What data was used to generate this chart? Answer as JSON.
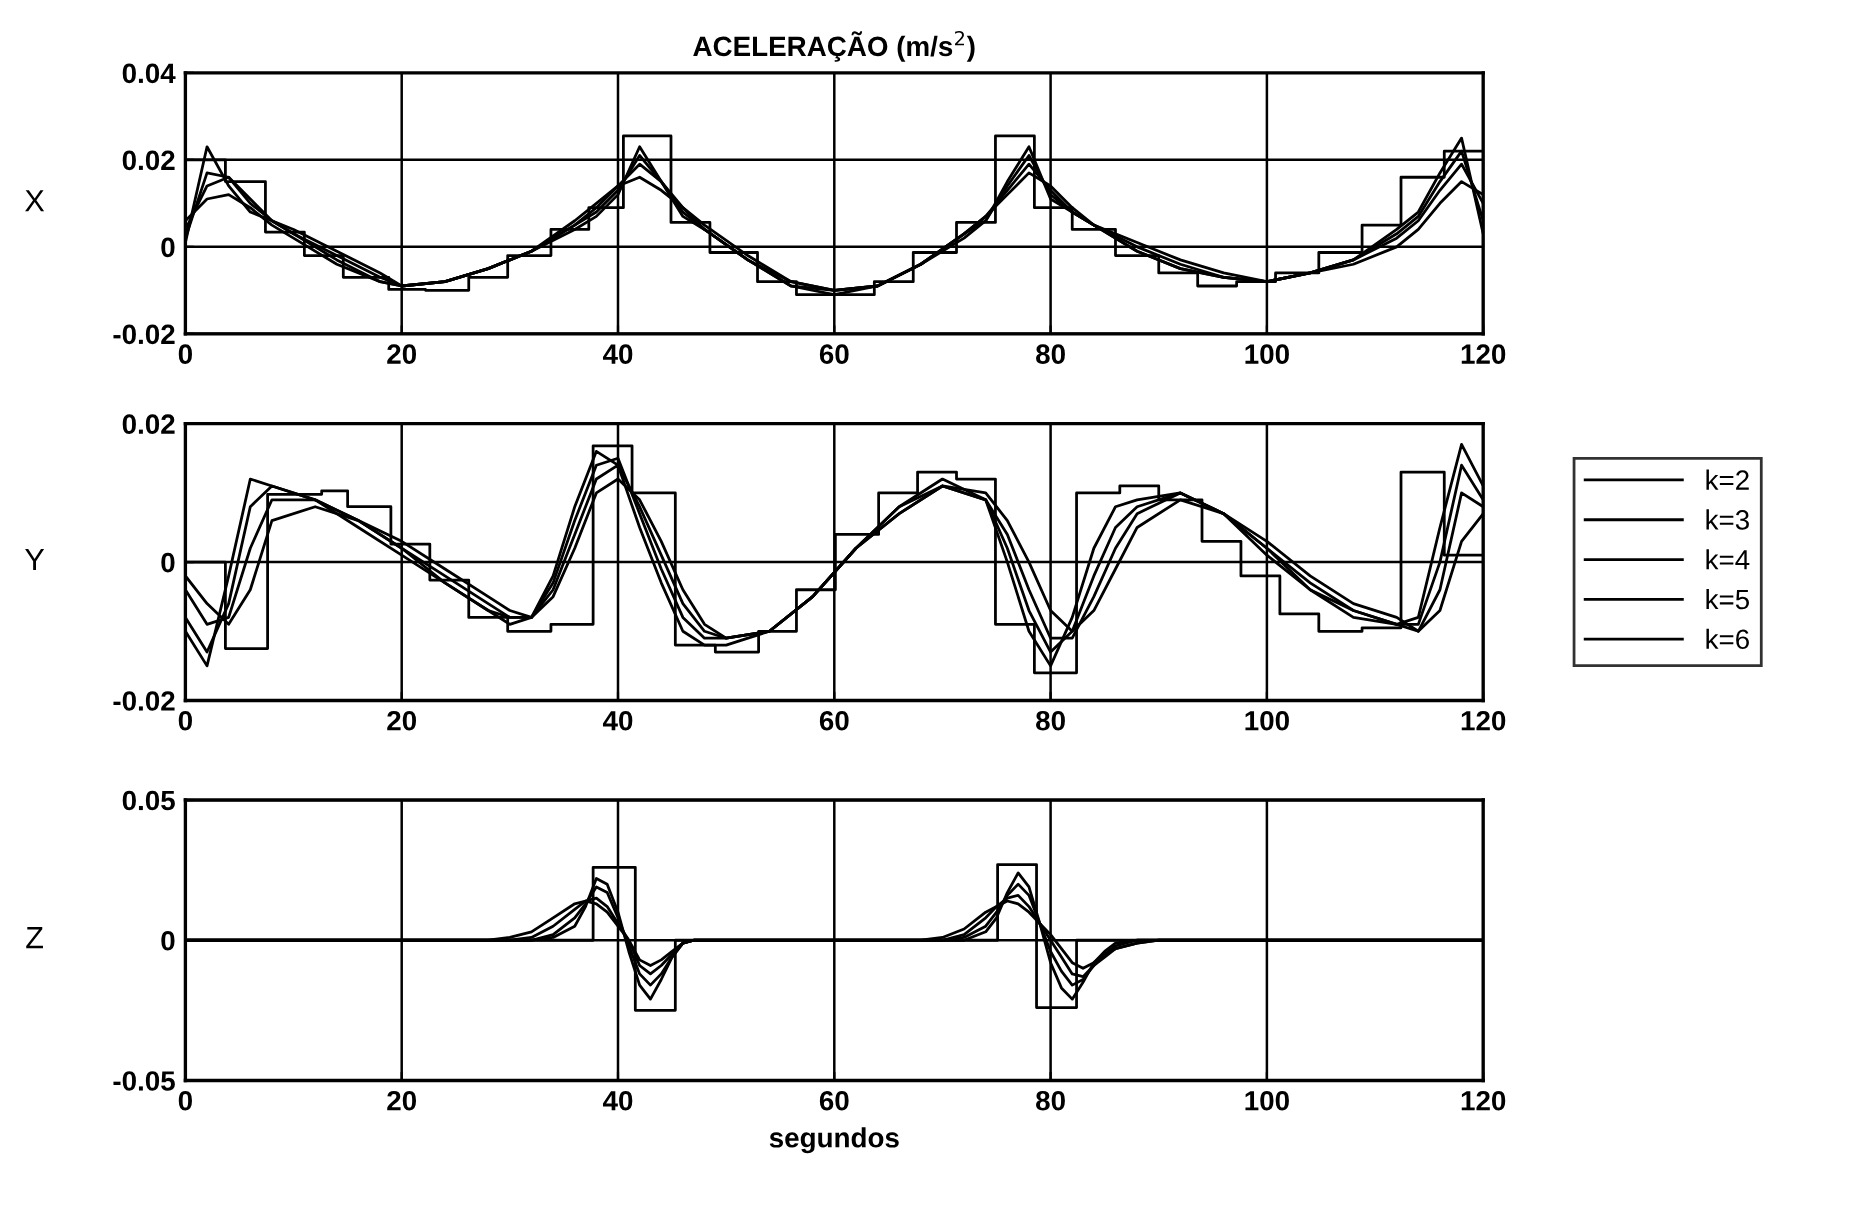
{
  "chart_data": [
    {
      "type": "line",
      "title": "ACELERAÇÃO (m/s$^{2}$)",
      "ylabel": "X",
      "xlim": [
        0,
        120
      ],
      "xticks": [
        0,
        20,
        40,
        60,
        80,
        100,
        120
      ],
      "ylim": [
        -0.02,
        0.04
      ],
      "yticks": [
        -0.02,
        0,
        0.02,
        0.04
      ],
      "grid": true,
      "series": [
        {
          "type": "step",
          "color": "#000000",
          "x": [
            0,
            3.7,
            7.4,
            11,
            14.6,
            18.8,
            22.2,
            26.2,
            29.8,
            33.8,
            37.3,
            40.5,
            44.9,
            48.5,
            52.9,
            56.5,
            60.1,
            63.7,
            67.3,
            71.3,
            74.9,
            78.5,
            82,
            86,
            90,
            93.6,
            97.2,
            100.8,
            104.8,
            108.8,
            112.4,
            116.4,
            120
          ],
          "values": [
            0.02,
            0.015,
            0.0034,
            -0.002,
            -0.007,
            -0.0098,
            -0.01,
            -0.007,
            -0.002,
            0.004,
            0.009,
            0.0255,
            0.0056,
            -0.0013,
            -0.008,
            -0.011,
            -0.011,
            -0.008,
            -0.0013,
            0.0056,
            0.0255,
            0.009,
            0.004,
            -0.002,
            -0.006,
            -0.009,
            -0.008,
            -0.006,
            -0.0013,
            0.005,
            0.016,
            0.022,
            0.022
          ]
        },
        {
          "color": "#000000",
          "x": [
            0,
            2,
            4,
            6,
            8,
            10,
            14,
            18,
            20,
            24,
            28,
            32,
            36,
            38,
            40,
            42,
            44,
            46,
            48,
            52,
            56,
            60,
            64,
            68,
            72,
            74,
            76,
            78,
            80,
            82,
            84,
            88,
            92,
            96,
            100,
            104,
            108,
            112,
            114,
            116,
            118,
            120
          ],
          "values": [
            0.006,
            0.011,
            0.012,
            0.009,
            0.005,
            0.002,
            -0.004,
            -0.008,
            -0.009,
            -0.008,
            -0.005,
            -0.001,
            0.006,
            0.01,
            0.014,
            0.016,
            0.013,
            0.009,
            0.005,
            -0.002,
            -0.008,
            -0.01,
            -0.009,
            -0.004,
            0.003,
            0.007,
            0.012,
            0.017,
            0.014,
            0.009,
            0.005,
            -0.001,
            -0.005,
            -0.007,
            -0.008,
            -0.006,
            -0.004,
            0.0,
            0.004,
            0.01,
            0.015,
            0.012
          ]
        },
        {
          "color": "#000000",
          "x": [
            0,
            2,
            4,
            6,
            8,
            10,
            14,
            18,
            20,
            24,
            28,
            32,
            36,
            38,
            40,
            42,
            44,
            46,
            48,
            52,
            56,
            60,
            64,
            68,
            72,
            74,
            76,
            78,
            80,
            82,
            84,
            88,
            92,
            96,
            100,
            104,
            108,
            112,
            114,
            116,
            118,
            120
          ],
          "values": [
            0.004,
            0.014,
            0.016,
            0.011,
            0.006,
            0.003,
            -0.003,
            -0.008,
            -0.009,
            -0.008,
            -0.005,
            -0.001,
            0.005,
            0.009,
            0.014,
            0.019,
            0.015,
            0.009,
            0.004,
            -0.003,
            -0.008,
            -0.01,
            -0.009,
            -0.004,
            0.003,
            0.007,
            0.013,
            0.019,
            0.013,
            0.008,
            0.005,
            -0.001,
            -0.005,
            -0.007,
            -0.008,
            -0.006,
            -0.003,
            0.002,
            0.006,
            0.013,
            0.019,
            0.01
          ]
        },
        {
          "color": "#000000",
          "x": [
            0,
            2,
            4,
            6,
            8,
            10,
            14,
            18,
            20,
            24,
            28,
            32,
            36,
            38,
            40,
            42,
            44,
            46,
            48,
            52,
            56,
            60,
            64,
            68,
            72,
            74,
            76,
            78,
            80,
            82,
            84,
            88,
            92,
            96,
            100,
            104,
            108,
            112,
            114,
            116,
            118,
            120
          ],
          "values": [
            0.002,
            0.017,
            0.016,
            0.01,
            0.006,
            0.003,
            -0.002,
            -0.007,
            -0.009,
            -0.008,
            -0.005,
            -0.001,
            0.005,
            0.008,
            0.013,
            0.021,
            0.015,
            0.008,
            0.004,
            -0.003,
            -0.009,
            -0.01,
            -0.009,
            -0.004,
            0.003,
            0.006,
            0.014,
            0.021,
            0.012,
            0.008,
            0.005,
            0.0,
            -0.004,
            -0.007,
            -0.008,
            -0.006,
            -0.003,
            0.003,
            0.007,
            0.015,
            0.022,
            0.006
          ]
        },
        {
          "color": "#000000",
          "x": [
            0,
            2,
            4,
            6,
            8,
            10,
            14,
            18,
            20,
            24,
            28,
            32,
            36,
            38,
            40,
            42,
            44,
            46,
            48,
            52,
            56,
            60,
            64,
            68,
            72,
            74,
            76,
            78,
            80,
            82,
            84,
            88,
            92,
            96,
            100,
            104,
            108,
            112,
            114,
            116,
            118,
            120
          ],
          "values": [
            0.001,
            0.023,
            0.014,
            0.008,
            0.006,
            0.004,
            -0.001,
            -0.006,
            -0.009,
            -0.008,
            -0.005,
            -0.001,
            0.004,
            0.007,
            0.012,
            0.023,
            0.015,
            0.007,
            0.004,
            -0.003,
            -0.009,
            -0.011,
            -0.009,
            -0.004,
            0.002,
            0.006,
            0.015,
            0.023,
            0.011,
            0.008,
            0.005,
            0.001,
            -0.003,
            -0.006,
            -0.008,
            -0.006,
            -0.003,
            0.004,
            0.008,
            0.017,
            0.025,
            0.003
          ]
        }
      ]
    },
    {
      "type": "line",
      "ylabel": "Y",
      "xlim": [
        0,
        120
      ],
      "xticks": [
        0,
        20,
        40,
        60,
        80,
        100,
        120
      ],
      "ylim": [
        -0.02,
        0.02
      ],
      "yticks": [
        -0.02,
        0,
        0.02
      ],
      "grid": true,
      "legend": "right",
      "series": [
        {
          "type": "step",
          "name": "k=2",
          "color": "#000000",
          "x": [
            0,
            3.7,
            7.6,
            12.6,
            15,
            19,
            22.6,
            26.2,
            29.8,
            33.8,
            37.7,
            41.3,
            45.3,
            49,
            53,
            56.5,
            60.1,
            64.1,
            67.7,
            71.3,
            74.9,
            78.5,
            82.4,
            86.4,
            90,
            94,
            97.6,
            101.2,
            104.8,
            108.8,
            112.4,
            116.4,
            120
          ],
          "values": [
            0,
            -0.0125,
            0.0098,
            0.0103,
            0.008,
            0.0026,
            -0.0026,
            -0.008,
            -0.01,
            -0.009,
            0.0168,
            0.01,
            -0.012,
            -0.013,
            -0.01,
            -0.004,
            0.004,
            0.01,
            0.013,
            0.012,
            -0.009,
            -0.016,
            0.01,
            0.011,
            0.009,
            0.003,
            -0.002,
            -0.0075,
            -0.01,
            -0.0095,
            0.013,
            0.001,
            0.001
          ]
        },
        {
          "name": "k=3",
          "color": "#000000",
          "x": [
            0,
            2,
            4,
            6,
            8,
            12,
            16,
            20,
            24,
            28,
            30,
            32,
            34,
            36,
            38,
            40,
            42,
            44,
            46,
            48,
            50,
            54,
            58,
            62,
            66,
            70,
            74,
            76,
            78,
            80,
            82,
            84,
            86,
            88,
            92,
            96,
            100,
            104,
            108,
            112,
            114,
            116,
            118,
            120
          ],
          "values": [
            -0.002,
            -0.006,
            -0.009,
            -0.004,
            0.006,
            0.008,
            0.006,
            0.003,
            -0.001,
            -0.005,
            -0.007,
            -0.008,
            -0.005,
            0.002,
            0.01,
            0.012,
            0.009,
            0.003,
            -0.004,
            -0.009,
            -0.011,
            -0.01,
            -0.005,
            0.002,
            0.007,
            0.011,
            0.01,
            0.006,
            0.0,
            -0.007,
            -0.01,
            -0.007,
            -0.001,
            0.005,
            0.009,
            0.007,
            0.003,
            -0.002,
            -0.006,
            -0.008,
            -0.01,
            -0.007,
            0.003,
            0.007
          ]
        },
        {
          "name": "k=4",
          "color": "#000000",
          "x": [
            0,
            2,
            4,
            6,
            8,
            12,
            16,
            20,
            24,
            28,
            30,
            32,
            34,
            36,
            38,
            40,
            42,
            44,
            46,
            48,
            50,
            54,
            58,
            62,
            66,
            70,
            74,
            76,
            78,
            80,
            82,
            84,
            86,
            88,
            92,
            96,
            100,
            104,
            108,
            112,
            114,
            116,
            118,
            120
          ],
          "values": [
            -0.004,
            -0.009,
            -0.008,
            0.002,
            0.009,
            0.009,
            0.006,
            0.002,
            -0.002,
            -0.006,
            -0.008,
            -0.008,
            -0.004,
            0.004,
            0.012,
            0.014,
            0.008,
            0.001,
            -0.006,
            -0.01,
            -0.011,
            -0.01,
            -0.005,
            0.002,
            0.007,
            0.011,
            0.009,
            0.004,
            -0.004,
            -0.011,
            -0.011,
            -0.005,
            0.002,
            0.007,
            0.01,
            0.007,
            0.002,
            -0.003,
            -0.007,
            -0.009,
            -0.01,
            -0.004,
            0.01,
            0.008
          ]
        },
        {
          "name": "k=5",
          "color": "#000000",
          "x": [
            0,
            2,
            4,
            6,
            8,
            12,
            16,
            20,
            24,
            28,
            30,
            32,
            34,
            36,
            38,
            40,
            42,
            44,
            46,
            48,
            50,
            54,
            58,
            62,
            66,
            70,
            74,
            76,
            78,
            80,
            82,
            84,
            86,
            88,
            92,
            96,
            100,
            104,
            108,
            112,
            114,
            116,
            118,
            120
          ],
          "values": [
            -0.008,
            -0.013,
            -0.006,
            0.008,
            0.011,
            0.009,
            0.006,
            0.002,
            -0.003,
            -0.007,
            -0.008,
            -0.008,
            -0.003,
            0.006,
            0.014,
            0.015,
            0.007,
            -0.001,
            -0.008,
            -0.011,
            -0.011,
            -0.01,
            -0.005,
            0.002,
            0.008,
            0.011,
            0.009,
            0.002,
            -0.007,
            -0.013,
            -0.01,
            -0.002,
            0.005,
            0.008,
            0.01,
            0.007,
            0.002,
            -0.004,
            -0.007,
            -0.009,
            -0.009,
            0.0,
            0.014,
            0.009
          ]
        },
        {
          "name": "k=6",
          "color": "#000000",
          "x": [
            0,
            2,
            4,
            6,
            8,
            12,
            16,
            20,
            24,
            28,
            30,
            32,
            34,
            36,
            38,
            40,
            42,
            44,
            46,
            48,
            50,
            54,
            58,
            62,
            66,
            70,
            74,
            76,
            78,
            80,
            82,
            84,
            86,
            88,
            92,
            96,
            100,
            104,
            108,
            112,
            114,
            116,
            118,
            120
          ],
          "values": [
            -0.01,
            -0.015,
            -0.002,
            0.012,
            0.011,
            0.009,
            0.005,
            0.001,
            -0.003,
            -0.007,
            -0.009,
            -0.008,
            -0.002,
            0.008,
            0.016,
            0.014,
            0.005,
            -0.003,
            -0.01,
            -0.012,
            -0.012,
            -0.01,
            -0.005,
            0.002,
            0.008,
            0.012,
            0.009,
            0.0,
            -0.01,
            -0.015,
            -0.008,
            0.002,
            0.008,
            0.009,
            0.01,
            0.007,
            0.001,
            -0.004,
            -0.008,
            -0.009,
            -0.008,
            0.005,
            0.017,
            0.011
          ]
        }
      ]
    },
    {
      "type": "line",
      "ylabel": "Z",
      "xlabel": "segundos",
      "xlim": [
        0,
        120
      ],
      "xticks": [
        0,
        20,
        40,
        60,
        80,
        100,
        120
      ],
      "ylim": [
        -0.05,
        0.05
      ],
      "yticks": [
        -0.05,
        0,
        0.05
      ],
      "grid": true,
      "series": [
        {
          "type": "step",
          "color": "#000000",
          "x": [
            0,
            37.7,
            41.6,
            45.3,
            75.1,
            78.7,
            82.4,
            120
          ],
          "values": [
            0,
            0.026,
            -0.025,
            0,
            0.027,
            -0.024,
            0,
            0
          ]
        },
        {
          "color": "#000000",
          "x": [
            0,
            28,
            30,
            32,
            34,
            36,
            37,
            38,
            39,
            40,
            41,
            42,
            43,
            44,
            45,
            46,
            47,
            48,
            60,
            68,
            70,
            72,
            74,
            75,
            76,
            77,
            78,
            79,
            80,
            81,
            82,
            83,
            84,
            85,
            86,
            88,
            90,
            120
          ],
          "values": [
            0,
            0,
            0.001,
            0.003,
            0.008,
            0.013,
            0.014,
            0.013,
            0.01,
            0.005,
            0.0,
            -0.007,
            -0.009,
            -0.007,
            -0.004,
            -0.001,
            0,
            0,
            0,
            0,
            0.001,
            0.004,
            0.01,
            0.012,
            0.014,
            0.013,
            0.01,
            0.006,
            0.002,
            -0.003,
            -0.008,
            -0.01,
            -0.008,
            -0.005,
            -0.003,
            -0.001,
            0,
            0
          ]
        },
        {
          "color": "#000000",
          "x": [
            0,
            28,
            30,
            32,
            34,
            36,
            37,
            38,
            39,
            40,
            41,
            42,
            43,
            44,
            45,
            46,
            47,
            48,
            60,
            68,
            70,
            72,
            74,
            75,
            76,
            77,
            78,
            79,
            80,
            81,
            82,
            83,
            84,
            85,
            86,
            88,
            90,
            120
          ],
          "values": [
            0,
            0,
            0,
            0.001,
            0.005,
            0.011,
            0.014,
            0.015,
            0.012,
            0.006,
            0.0,
            -0.009,
            -0.012,
            -0.009,
            -0.005,
            -0.001,
            0,
            0,
            0,
            0,
            0,
            0.002,
            0.008,
            0.012,
            0.015,
            0.016,
            0.012,
            0.006,
            0.0,
            -0.006,
            -0.012,
            -0.013,
            -0.009,
            -0.006,
            -0.003,
            -0.001,
            0,
            0
          ]
        },
        {
          "color": "#000000",
          "x": [
            0,
            28,
            30,
            32,
            34,
            36,
            37,
            38,
            39,
            40,
            41,
            42,
            43,
            44,
            45,
            46,
            47,
            48,
            60,
            68,
            70,
            72,
            74,
            75,
            76,
            77,
            78,
            79,
            80,
            81,
            82,
            83,
            84,
            85,
            86,
            88,
            90,
            120
          ],
          "values": [
            0,
            0,
            0,
            0,
            0.002,
            0.008,
            0.013,
            0.019,
            0.017,
            0.008,
            -0.002,
            -0.012,
            -0.016,
            -0.012,
            -0.006,
            -0.001,
            0,
            0,
            0,
            0,
            0,
            0.001,
            0.005,
            0.01,
            0.016,
            0.02,
            0.016,
            0.006,
            -0.004,
            -0.011,
            -0.016,
            -0.014,
            -0.009,
            -0.005,
            -0.002,
            0,
            0,
            0
          ]
        },
        {
          "color": "#000000",
          "x": [
            0,
            28,
            30,
            32,
            34,
            36,
            37,
            38,
            39,
            40,
            41,
            42,
            43,
            44,
            45,
            46,
            47,
            48,
            60,
            68,
            70,
            72,
            74,
            75,
            76,
            77,
            78,
            79,
            80,
            81,
            82,
            83,
            84,
            85,
            86,
            88,
            90,
            120
          ],
          "values": [
            0,
            0,
            0,
            0,
            0.001,
            0.005,
            0.012,
            0.022,
            0.02,
            0.01,
            -0.004,
            -0.016,
            -0.021,
            -0.014,
            -0.006,
            -0.001,
            0,
            0,
            0,
            0,
            0,
            0,
            0.003,
            0.008,
            0.017,
            0.024,
            0.019,
            0.006,
            -0.008,
            -0.017,
            -0.021,
            -0.015,
            -0.008,
            -0.004,
            -0.001,
            0,
            0,
            0
          ]
        }
      ]
    }
  ]
}
